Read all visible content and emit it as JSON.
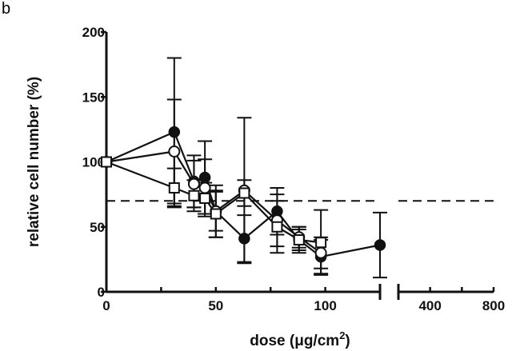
{
  "panel_label": "b",
  "chart_data": {
    "type": "line",
    "title": "",
    "ylabel": "relative cell number (%)",
    "xlabel_main": "dose (",
    "xlabel_unit": "μg/cm",
    "xlabel_sup": "2",
    "xlabel_close": ")",
    "ylim": [
      0,
      200
    ],
    "yticks": [
      0,
      50,
      100,
      150,
      200
    ],
    "x_segment_1": {
      "range": [
        0,
        125
      ],
      "ticks": [
        0,
        50,
        100
      ],
      "minor_ticks": [
        25,
        75,
        125
      ]
    },
    "x_segment_2": {
      "range": [
        200,
        800
      ],
      "ticks": [
        400,
        800
      ],
      "minor_ticks": [
        200,
        600
      ]
    },
    "reference_line": {
      "y": 70,
      "style": "dashed"
    },
    "grid": false,
    "legend": "none",
    "series": [
      {
        "marker": "filled-circle",
        "x": [
          0,
          31,
          40,
          45,
          50,
          63,
          78,
          88,
          98,
          125
        ],
        "values": [
          100,
          123,
          85,
          88,
          62,
          41,
          62,
          40,
          27,
          36
        ],
        "errors": [
          0,
          57,
          20,
          28,
          20,
          18,
          18,
          8,
          13,
          25
        ]
      },
      {
        "marker": "open-circle",
        "x": [
          0,
          31,
          40,
          45,
          50,
          63,
          78,
          88,
          98
        ],
        "values": [
          100,
          108,
          83,
          80,
          62,
          78,
          55,
          42,
          30
        ],
        "errors": [
          0,
          40,
          18,
          22,
          15,
          56,
          20,
          8,
          12
        ]
      },
      {
        "marker": "open-square",
        "x": [
          0,
          31,
          40,
          45,
          50,
          63,
          78,
          88,
          98
        ],
        "values": [
          100,
          80,
          74,
          72,
          60,
          76,
          50,
          40,
          38
        ],
        "errors": [
          0,
          15,
          12,
          12,
          18,
          10,
          20,
          10,
          25
        ]
      }
    ]
  }
}
